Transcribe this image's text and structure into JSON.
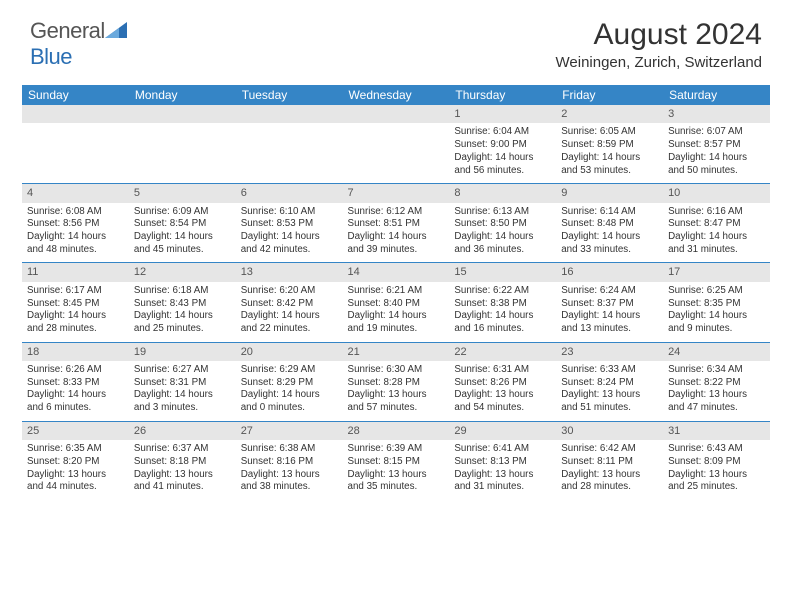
{
  "brand": {
    "name_part1": "General",
    "name_part2": "Blue"
  },
  "title": "August 2024",
  "location": "Weiningen, Zurich, Switzerland",
  "colors": {
    "header_bg": "#3585c6",
    "header_text": "#ffffff",
    "daynum_bg": "#e6e6e6",
    "cell_border": "#3585c6",
    "text": "#333333",
    "brand_gray": "#555555",
    "brand_blue": "#2b6fb3"
  },
  "fonts": {
    "title_size": 30,
    "location_size": 15,
    "dayhead_size": 12,
    "cell_size": 9.8
  },
  "day_headers": [
    "Sunday",
    "Monday",
    "Tuesday",
    "Wednesday",
    "Thursday",
    "Friday",
    "Saturday"
  ],
  "weeks": [
    [
      {
        "num": "",
        "sunrise": "",
        "sunset": "",
        "daylight": ""
      },
      {
        "num": "",
        "sunrise": "",
        "sunset": "",
        "daylight": ""
      },
      {
        "num": "",
        "sunrise": "",
        "sunset": "",
        "daylight": ""
      },
      {
        "num": "",
        "sunrise": "",
        "sunset": "",
        "daylight": ""
      },
      {
        "num": "1",
        "sunrise": "Sunrise: 6:04 AM",
        "sunset": "Sunset: 9:00 PM",
        "daylight": "Daylight: 14 hours and 56 minutes."
      },
      {
        "num": "2",
        "sunrise": "Sunrise: 6:05 AM",
        "sunset": "Sunset: 8:59 PM",
        "daylight": "Daylight: 14 hours and 53 minutes."
      },
      {
        "num": "3",
        "sunrise": "Sunrise: 6:07 AM",
        "sunset": "Sunset: 8:57 PM",
        "daylight": "Daylight: 14 hours and 50 minutes."
      }
    ],
    [
      {
        "num": "4",
        "sunrise": "Sunrise: 6:08 AM",
        "sunset": "Sunset: 8:56 PM",
        "daylight": "Daylight: 14 hours and 48 minutes."
      },
      {
        "num": "5",
        "sunrise": "Sunrise: 6:09 AM",
        "sunset": "Sunset: 8:54 PM",
        "daylight": "Daylight: 14 hours and 45 minutes."
      },
      {
        "num": "6",
        "sunrise": "Sunrise: 6:10 AM",
        "sunset": "Sunset: 8:53 PM",
        "daylight": "Daylight: 14 hours and 42 minutes."
      },
      {
        "num": "7",
        "sunrise": "Sunrise: 6:12 AM",
        "sunset": "Sunset: 8:51 PM",
        "daylight": "Daylight: 14 hours and 39 minutes."
      },
      {
        "num": "8",
        "sunrise": "Sunrise: 6:13 AM",
        "sunset": "Sunset: 8:50 PM",
        "daylight": "Daylight: 14 hours and 36 minutes."
      },
      {
        "num": "9",
        "sunrise": "Sunrise: 6:14 AM",
        "sunset": "Sunset: 8:48 PM",
        "daylight": "Daylight: 14 hours and 33 minutes."
      },
      {
        "num": "10",
        "sunrise": "Sunrise: 6:16 AM",
        "sunset": "Sunset: 8:47 PM",
        "daylight": "Daylight: 14 hours and 31 minutes."
      }
    ],
    [
      {
        "num": "11",
        "sunrise": "Sunrise: 6:17 AM",
        "sunset": "Sunset: 8:45 PM",
        "daylight": "Daylight: 14 hours and 28 minutes."
      },
      {
        "num": "12",
        "sunrise": "Sunrise: 6:18 AM",
        "sunset": "Sunset: 8:43 PM",
        "daylight": "Daylight: 14 hours and 25 minutes."
      },
      {
        "num": "13",
        "sunrise": "Sunrise: 6:20 AM",
        "sunset": "Sunset: 8:42 PM",
        "daylight": "Daylight: 14 hours and 22 minutes."
      },
      {
        "num": "14",
        "sunrise": "Sunrise: 6:21 AM",
        "sunset": "Sunset: 8:40 PM",
        "daylight": "Daylight: 14 hours and 19 minutes."
      },
      {
        "num": "15",
        "sunrise": "Sunrise: 6:22 AM",
        "sunset": "Sunset: 8:38 PM",
        "daylight": "Daylight: 14 hours and 16 minutes."
      },
      {
        "num": "16",
        "sunrise": "Sunrise: 6:24 AM",
        "sunset": "Sunset: 8:37 PM",
        "daylight": "Daylight: 14 hours and 13 minutes."
      },
      {
        "num": "17",
        "sunrise": "Sunrise: 6:25 AM",
        "sunset": "Sunset: 8:35 PM",
        "daylight": "Daylight: 14 hours and 9 minutes."
      }
    ],
    [
      {
        "num": "18",
        "sunrise": "Sunrise: 6:26 AM",
        "sunset": "Sunset: 8:33 PM",
        "daylight": "Daylight: 14 hours and 6 minutes."
      },
      {
        "num": "19",
        "sunrise": "Sunrise: 6:27 AM",
        "sunset": "Sunset: 8:31 PM",
        "daylight": "Daylight: 14 hours and 3 minutes."
      },
      {
        "num": "20",
        "sunrise": "Sunrise: 6:29 AM",
        "sunset": "Sunset: 8:29 PM",
        "daylight": "Daylight: 14 hours and 0 minutes."
      },
      {
        "num": "21",
        "sunrise": "Sunrise: 6:30 AM",
        "sunset": "Sunset: 8:28 PM",
        "daylight": "Daylight: 13 hours and 57 minutes."
      },
      {
        "num": "22",
        "sunrise": "Sunrise: 6:31 AM",
        "sunset": "Sunset: 8:26 PM",
        "daylight": "Daylight: 13 hours and 54 minutes."
      },
      {
        "num": "23",
        "sunrise": "Sunrise: 6:33 AM",
        "sunset": "Sunset: 8:24 PM",
        "daylight": "Daylight: 13 hours and 51 minutes."
      },
      {
        "num": "24",
        "sunrise": "Sunrise: 6:34 AM",
        "sunset": "Sunset: 8:22 PM",
        "daylight": "Daylight: 13 hours and 47 minutes."
      }
    ],
    [
      {
        "num": "25",
        "sunrise": "Sunrise: 6:35 AM",
        "sunset": "Sunset: 8:20 PM",
        "daylight": "Daylight: 13 hours and 44 minutes."
      },
      {
        "num": "26",
        "sunrise": "Sunrise: 6:37 AM",
        "sunset": "Sunset: 8:18 PM",
        "daylight": "Daylight: 13 hours and 41 minutes."
      },
      {
        "num": "27",
        "sunrise": "Sunrise: 6:38 AM",
        "sunset": "Sunset: 8:16 PM",
        "daylight": "Daylight: 13 hours and 38 minutes."
      },
      {
        "num": "28",
        "sunrise": "Sunrise: 6:39 AM",
        "sunset": "Sunset: 8:15 PM",
        "daylight": "Daylight: 13 hours and 35 minutes."
      },
      {
        "num": "29",
        "sunrise": "Sunrise: 6:41 AM",
        "sunset": "Sunset: 8:13 PM",
        "daylight": "Daylight: 13 hours and 31 minutes."
      },
      {
        "num": "30",
        "sunrise": "Sunrise: 6:42 AM",
        "sunset": "Sunset: 8:11 PM",
        "daylight": "Daylight: 13 hours and 28 minutes."
      },
      {
        "num": "31",
        "sunrise": "Sunrise: 6:43 AM",
        "sunset": "Sunset: 8:09 PM",
        "daylight": "Daylight: 13 hours and 25 minutes."
      }
    ]
  ]
}
